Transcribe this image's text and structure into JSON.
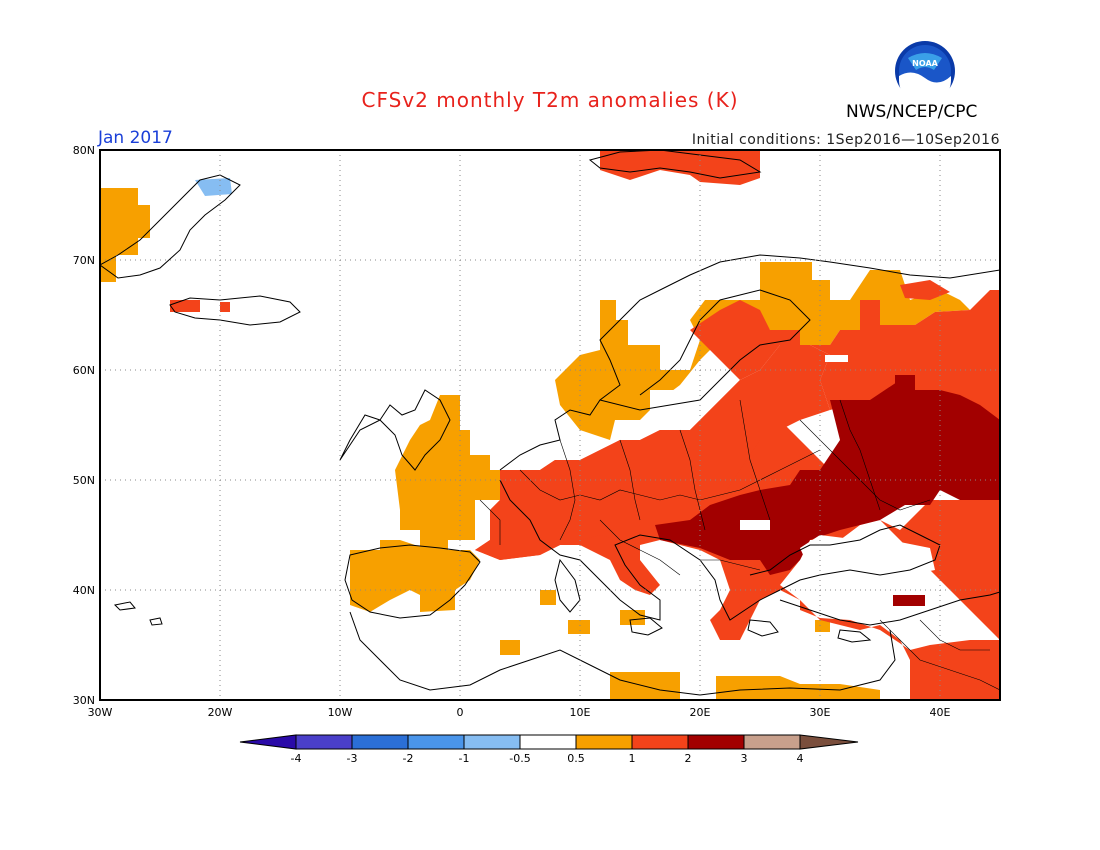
{
  "title": "CFSv2 monthly T2m anomalies (K)",
  "period": "Jan 2017",
  "initial_conditions": "Initial conditions: 1Sep2016—10Sep2016",
  "agency": "NWS/NCEP/CPC",
  "logo_text": "NOAA",
  "map": {
    "lon_range": [
      -30,
      45
    ],
    "lat_range": [
      30,
      80
    ],
    "grid": true,
    "lon_ticks": [
      "30W",
      "20W",
      "10W",
      "0",
      "10E",
      "20E",
      "30E",
      "40E"
    ],
    "lat_ticks": [
      "30N",
      "40N",
      "50N",
      "60N",
      "70N",
      "80N"
    ]
  },
  "colorbar": {
    "labels": [
      "-4",
      "-3",
      "-2",
      "-1",
      "-0.5",
      "0.5",
      "1",
      "2",
      "3",
      "4"
    ],
    "colors": [
      "#2a0aa8",
      "#4a3fc9",
      "#2b6fd6",
      "#4a95ea",
      "#86bdf2",
      "#ffffff",
      "#f7a000",
      "#f3431a",
      "#a20000",
      "#c8a08c",
      "#7a4e3c"
    ]
  }
}
